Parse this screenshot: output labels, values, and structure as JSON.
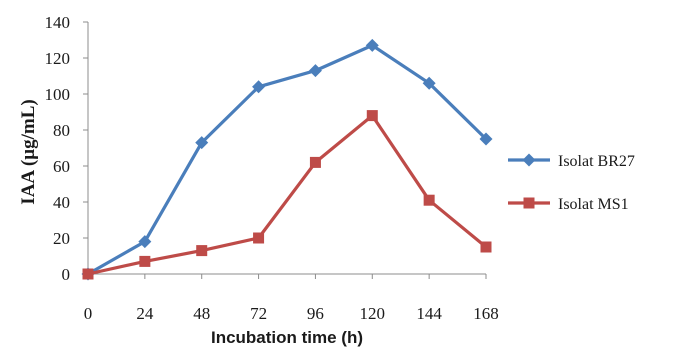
{
  "chart_data": {
    "type": "line",
    "x": [
      0,
      24,
      48,
      72,
      96,
      120,
      144,
      168
    ],
    "xlabel": "Incubation time (h)",
    "ylabel": "IAA (µg/mL)",
    "ylim": [
      0,
      140
    ],
    "yticks": [
      0,
      20,
      40,
      60,
      80,
      100,
      120,
      140
    ],
    "grid": false,
    "legend_position": "right",
    "series": [
      {
        "name": "Isolat BR27",
        "color": "#4a7ebb",
        "marker": "diamond",
        "values": [
          0,
          18,
          73,
          104,
          113,
          127,
          106,
          75
        ]
      },
      {
        "name": "Isolat MS1",
        "color": "#be4b48",
        "marker": "square",
        "values": [
          0,
          7,
          13,
          20,
          62,
          88,
          41,
          15
        ]
      }
    ]
  }
}
